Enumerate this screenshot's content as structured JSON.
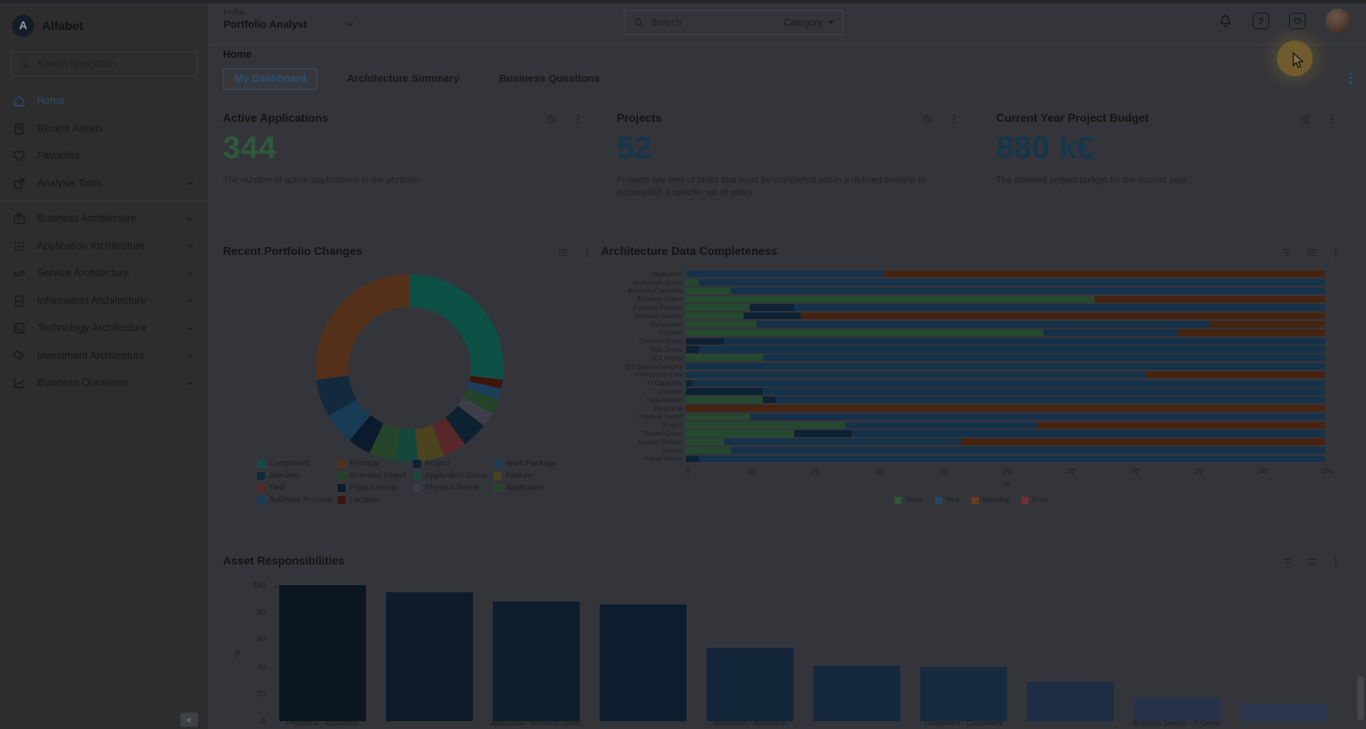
{
  "app": {
    "name": "Alfabet",
    "logo_letter": "A"
  },
  "sidebar": {
    "search_placeholder": "Search Navigation",
    "collapse_label": "«",
    "items": [
      {
        "label": "Home",
        "icon": "home-icon",
        "active": true,
        "chevron": false,
        "divider_before": false
      },
      {
        "label": "Recent Assets",
        "icon": "recent-assets-icon",
        "active": false,
        "chevron": false,
        "divider_before": false
      },
      {
        "label": "Favorites",
        "icon": "heart-icon",
        "active": false,
        "chevron": false,
        "divider_before": false
      },
      {
        "label": "Analysis Tools",
        "icon": "analysis-tools-icon",
        "active": false,
        "chevron": true,
        "divider_before": false
      },
      {
        "label": "Business Architecture",
        "icon": "briefcase-icon",
        "active": false,
        "chevron": true,
        "divider_before": true
      },
      {
        "label": "Application Architecture",
        "icon": "grid-icon",
        "active": false,
        "chevron": true,
        "divider_before": false
      },
      {
        "label": "Service Architecture",
        "icon": "service-hand-icon",
        "active": false,
        "chevron": true,
        "divider_before": false
      },
      {
        "label": "Information Architecture",
        "icon": "book-icon",
        "active": false,
        "chevron": true,
        "divider_before": false
      },
      {
        "label": "Technology Architecture",
        "icon": "terminal-icon",
        "active": false,
        "chevron": true,
        "divider_before": false
      },
      {
        "label": "Investment Architecture",
        "icon": "coins-icon",
        "active": false,
        "chevron": true,
        "divider_before": false
      },
      {
        "label": "Business Questions",
        "icon": "chart-line-icon",
        "active": false,
        "chevron": true,
        "divider_before": false
      }
    ]
  },
  "topbar": {
    "profile_label": "Profile",
    "profile_value": "Portfolio Analyst",
    "search_placeholder": "Search",
    "category_label": "Category",
    "icons": [
      "bell-icon",
      "help-icon",
      "favorites-square-icon",
      "avatar"
    ]
  },
  "page": {
    "breadcrumb": "Home",
    "tabs": [
      {
        "label": "My Dashboard",
        "active": true
      },
      {
        "label": "Architecture Summary",
        "active": false
      },
      {
        "label": "Business Questions",
        "active": false
      }
    ]
  },
  "kpis": [
    {
      "title": "Active Applications",
      "value": "344",
      "value_color": "#2f5a3c",
      "description": "The number of active applications in the portfolio.",
      "icons": [
        "history-icon",
        "kebab-icon"
      ]
    },
    {
      "title": "Projects",
      "value": "52",
      "value_color": "#16364e",
      "description": "Projects are sets of tasks that must be completed within a defined timeline to accomplish a specific set of goals.",
      "icons": [
        "history-icon",
        "kebab-icon"
      ]
    },
    {
      "title": "Current Year Project Budget",
      "value": "880 k€",
      "value_color": "#16364e",
      "description": "The planned project budget for the current year.",
      "icons": [
        "history-icon",
        "kebab-icon"
      ]
    }
  ],
  "chart_data": [
    {
      "type": "pie",
      "title": "Recent Portfolio Changes",
      "hole_ratio": 0.65,
      "panel_icons": [
        "list-icon",
        "kebab-icon"
      ],
      "legend_order": [
        "Component",
        "Principle",
        "Project",
        "Work Package",
        "Demand",
        "Business Object",
        "Application Group",
        "Feature",
        "Task",
        "Project Group",
        "Physical Server",
        "Application",
        "Business Process",
        "Location"
      ],
      "colors": {
        "Component": "#0d5046",
        "Principle": "#54301b",
        "Project": "#0c2231",
        "Work Package": "#1d3e5a",
        "Demand": "#13293d",
        "Business Object": "#234428",
        "Application Group": "#16473d",
        "Feature": "#4b441f",
        "Task": "#592729",
        "Project Group": "#0b1b2d",
        "Physical Server": "#3e3e4a",
        "Application": "#26462c",
        "Business Process": "#183b56",
        "Location": "#3e150c"
      },
      "slices_clockwise_from_top": [
        {
          "name": "Component",
          "value": 27
        },
        {
          "name": "Location",
          "value": 1.5
        },
        {
          "name": "Work Package",
          "value": 2
        },
        {
          "name": "Business Object",
          "value": 2.5
        },
        {
          "name": "Physical Server",
          "value": 2.5
        },
        {
          "name": "Project",
          "value": 4.5
        },
        {
          "name": "Task",
          "value": 4
        },
        {
          "name": "Feature",
          "value": 4.5
        },
        {
          "name": "Application Group",
          "value": 4
        },
        {
          "name": "Application",
          "value": 4.5
        },
        {
          "name": "Project Group",
          "value": 4
        },
        {
          "name": "Business Process",
          "value": 5.5
        },
        {
          "name": "Demand",
          "value": 6.5
        },
        {
          "name": "Principle",
          "value": 27
        }
      ]
    },
    {
      "type": "bar",
      "title": "Architecture Data Completeness",
      "orientation": "horizontal",
      "stacked": true,
      "xlabel": "%",
      "xlim": [
        0,
        100
      ],
      "xticks": [
        0,
        10,
        20,
        30,
        40,
        50,
        60,
        70,
        80,
        90,
        100
      ],
      "panel_icons": [
        "filter-icon",
        "list-icon",
        "kebab-icon"
      ],
      "status_colors": {
        "none": "#25492e",
        "hint": "#16314a",
        "hint_dark": "#0e2236",
        "warning": "#46230f",
        "error": "#5c2b31"
      },
      "legend": [
        {
          "label": "None",
          "color": "#2b5a35"
        },
        {
          "label": "Hint",
          "color": "#1d4a66"
        },
        {
          "label": "Warning",
          "color": "#6e3a1e"
        },
        {
          "label": "Error",
          "color": "#6e3036"
        }
      ],
      "rows": [
        {
          "category": "Application",
          "segments": [
            [
              "hint",
              31
            ],
            [
              "warning",
              69
            ]
          ]
        },
        {
          "category": "Application Group",
          "segments": [
            [
              "none",
              2
            ],
            [
              "hint",
              98
            ]
          ]
        },
        {
          "category": "Business Capability",
          "segments": [
            [
              "none",
              7
            ],
            [
              "hint",
              93
            ]
          ]
        },
        {
          "category": "Business Object",
          "segments": [
            [
              "none",
              64
            ],
            [
              "warning",
              36
            ]
          ]
        },
        {
          "category": "Business Process",
          "segments": [
            [
              "none",
              10
            ],
            [
              "hint_dark",
              7
            ],
            [
              "hint",
              83
            ]
          ]
        },
        {
          "category": "Business Service",
          "segments": [
            [
              "none",
              9
            ],
            [
              "hint_dark",
              9
            ],
            [
              "warning",
              82
            ]
          ]
        },
        {
          "category": "Component",
          "segments": [
            [
              "none",
              11
            ],
            [
              "hint",
              71
            ],
            [
              "warning",
              18
            ]
          ]
        },
        {
          "category": "Contract",
          "segments": [
            [
              "none",
              56
            ],
            [
              "hint",
              21
            ],
            [
              "warning",
              23
            ]
          ]
        },
        {
          "category": "Demand Group",
          "segments": [
            [
              "hint_dark",
              6
            ],
            [
              "hint",
              94
            ]
          ]
        },
        {
          "category": "Epic Group",
          "segments": [
            [
              "hint_dark",
              2
            ],
            [
              "hint",
              98
            ]
          ]
        },
        {
          "category": "ICT Object",
          "segments": [
            [
              "none",
              12
            ],
            [
              "hint",
              88
            ]
          ]
        },
        {
          "category": "ICT Object Category",
          "segments": [
            [
              "hint",
              100
            ]
          ]
        },
        {
          "category": "Information Flow",
          "segments": [
            [
              "hint",
              72
            ],
            [
              "warning",
              28
            ]
          ]
        },
        {
          "category": "IT Capability",
          "segments": [
            [
              "hint_dark",
              1
            ],
            [
              "hint",
              99
            ]
          ]
        },
        {
          "category": "Location",
          "segments": [
            [
              "hint_dark",
              12
            ],
            [
              "hint",
              88
            ]
          ]
        },
        {
          "category": "Organization",
          "segments": [
            [
              "none",
              12
            ],
            [
              "hint_dark",
              2
            ],
            [
              "hint",
              86
            ]
          ]
        },
        {
          "category": "Peripheral",
          "segments": [
            [
              "warning",
              100
            ]
          ]
        },
        {
          "category": "Physical Server",
          "segments": [
            [
              "none",
              10
            ],
            [
              "hint",
              90
            ]
          ]
        },
        {
          "category": "Project",
          "segments": [
            [
              "none",
              25
            ],
            [
              "hint",
              30
            ],
            [
              "warning",
              45
            ]
          ]
        },
        {
          "category": "Project Group",
          "segments": [
            [
              "none",
              17
            ],
            [
              "hint_dark",
              9
            ],
            [
              "hint",
              74
            ]
          ]
        },
        {
          "category": "Support Service",
          "segments": [
            [
              "none",
              6
            ],
            [
              "hint",
              37
            ],
            [
              "warning",
              57
            ]
          ]
        },
        {
          "category": "Vendor",
          "segments": [
            [
              "none",
              7
            ],
            [
              "hint",
              93
            ]
          ]
        },
        {
          "category": "Virtual Server",
          "segments": [
            [
              "hint_dark",
              2
            ],
            [
              "hint",
              98
            ]
          ]
        }
      ]
    },
    {
      "type": "bar",
      "title": "Asset Responsibilities",
      "ylabel": "%",
      "ylim": [
        0,
        100
      ],
      "yticks": [
        0,
        20,
        40,
        60,
        80,
        100
      ],
      "panel_icons": [
        "filter-icon",
        "list-icon",
        "kebab-icon"
      ],
      "categories": [
        "Peripheral - Application",
        "",
        "Application - Business Owner",
        "",
        "Application - Application",
        "",
        "Component - Component",
        "",
        "Business Service - IT Owner",
        ""
      ],
      "values": [
        100,
        95,
        88,
        86,
        54,
        41,
        40,
        29,
        17,
        13
      ],
      "bar_colors": [
        "#0a1622",
        "#0d1b2a",
        "#0e1e2c",
        "#0e1d2e",
        "#122438",
        "#16283e",
        "#182a40",
        "#1d2d44",
        "#26334a",
        "#2b3850"
      ]
    }
  ],
  "overlay": {
    "spotlight_color": "#6f5b2c",
    "page_kebab_color": "#2c567c",
    "scrollbar_thumb_color": "#46474d"
  }
}
